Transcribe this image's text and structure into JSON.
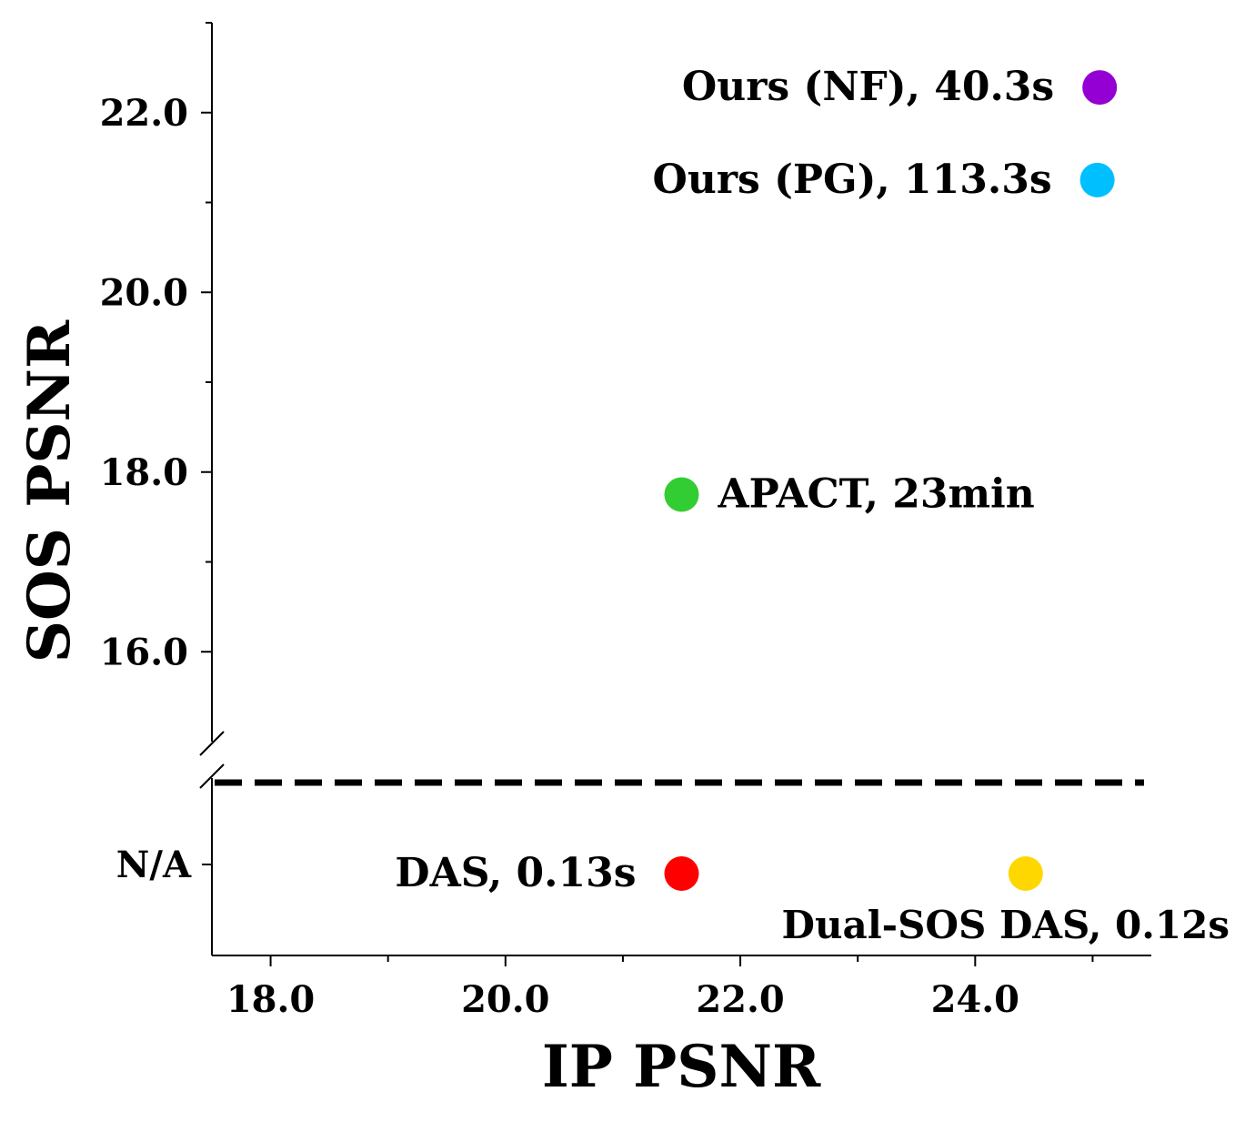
{
  "chart_data": {
    "type": "scatter",
    "xlabel": "IP PSNR",
    "ylabel": "SOS PSNR",
    "xlim": [
      17.5,
      25.5
    ],
    "ylim_top": [
      15.0,
      23.0
    ],
    "bottom_panel_label": "N/A",
    "xticks": [
      {
        "value": 18.0,
        "label": "18.0"
      },
      {
        "value": 20.0,
        "label": "20.0"
      },
      {
        "value": 22.0,
        "label": "22.0"
      },
      {
        "value": 24.0,
        "label": "24.0"
      }
    ],
    "xticks_minor": [
      19.0,
      21.0,
      23.0,
      25.0
    ],
    "yticks": [
      {
        "value": 16.0,
        "label": "16.0"
      },
      {
        "value": 18.0,
        "label": "18.0"
      },
      {
        "value": 20.0,
        "label": "20.0"
      },
      {
        "value": 22.0,
        "label": "22.0"
      }
    ],
    "yticks_minor": [
      17.0,
      19.0,
      21.0,
      23.0
    ],
    "axis_break": true,
    "divider_style": "dashed",
    "points": [
      {
        "id": "ours-nf",
        "label": "Ours (NF), 40.3s",
        "x": 25.06,
        "y": 22.28,
        "color": "#9400D3",
        "label_side": "left",
        "panel": "top"
      },
      {
        "id": "ours-pg",
        "label": "Ours (PG), 113.3s",
        "x": 25.04,
        "y": 21.25,
        "color": "#00BFFF",
        "label_side": "left",
        "panel": "top"
      },
      {
        "id": "apact",
        "label": "APACT, 23min",
        "x": 21.5,
        "y": 17.75,
        "color": "#32CD32",
        "label_side": "right",
        "panel": "top"
      },
      {
        "id": "das",
        "label": "DAS, 0.13s",
        "x": 21.5,
        "y": null,
        "color": "#FF0000",
        "label_side": "left",
        "panel": "bottom"
      },
      {
        "id": "dual-sos-das",
        "label": "Dual-SOS DAS, 0.12s",
        "x": 24.43,
        "y": null,
        "color": "#FFD700",
        "label_side": "below",
        "panel": "bottom"
      }
    ]
  }
}
